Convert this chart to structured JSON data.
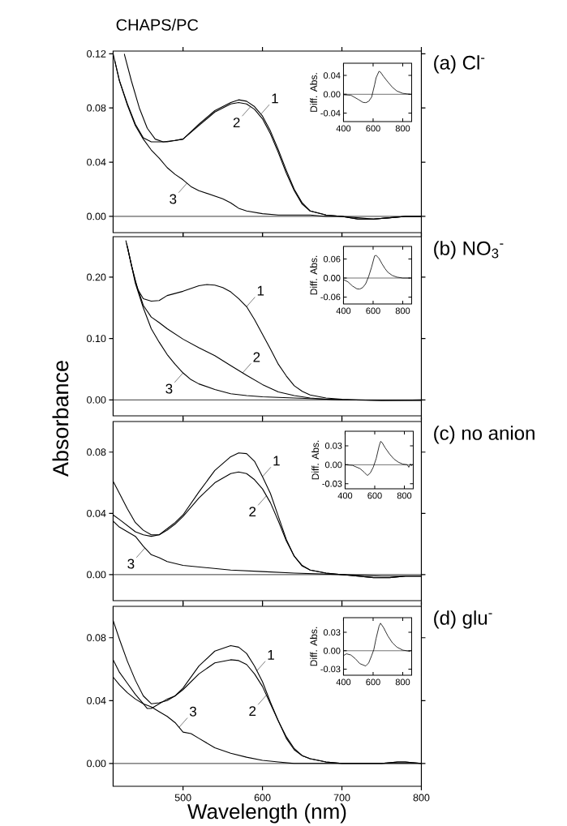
{
  "chart_data": [
    {
      "type": "line",
      "title": "CHAPS/PC",
      "xlim": [
        412,
        800
      ],
      "ylim": [
        -0.012,
        0.122
      ],
      "xticks": [
        500,
        600,
        700,
        800
      ],
      "yticks": [
        {
          "value": 0,
          "label": "0.00"
        },
        {
          "value": 0.04,
          "label": "0.04"
        },
        {
          "value": 0.08,
          "label": "0.08"
        },
        {
          "value": 0.12,
          "label": "0.12"
        }
      ],
      "tick_labels": "y",
      "ref_lines": [
        {
          "axis": "y",
          "value": 0
        }
      ],
      "annotations": [
        "(a) Cl$^{-}$",
        {
          "text": "1",
          "x": 598,
          "y": 0.0754
        },
        {
          "text": "2",
          "x": 585,
          "y": 0.081
        },
        {
          "text": "3",
          "x": 505,
          "y": 0.0245
        }
      ],
      "series": [
        {
          "color": "#000000",
          "x": [
            426,
            435,
            445,
            455,
            465,
            475,
            490,
            500,
            520,
            540,
            560,
            570,
            580,
            590,
            600,
            610,
            620,
            630,
            640,
            650,
            660,
            680,
            700,
            720,
            740,
            760,
            780,
            800
          ],
          "values": [
            0.12,
            0.1,
            0.08,
            0.065,
            0.057,
            0.055,
            0.056,
            0.057,
            0.068,
            0.078,
            0.084,
            0.086,
            0.085,
            0.081,
            0.074,
            0.063,
            0.049,
            0.034,
            0.02,
            0.01,
            0.004,
            0.001,
            0,
            -0.002,
            -0.002,
            -0.001,
            0,
            0
          ]
        },
        {
          "color": "#000000",
          "x": [
            412,
            420,
            430,
            440,
            450,
            460,
            480,
            500,
            520,
            540,
            560,
            570,
            580,
            590,
            600,
            610,
            620,
            630,
            640,
            650,
            660,
            680,
            700,
            720,
            740,
            760,
            780,
            800
          ],
          "values": [
            0.12,
            0.1,
            0.083,
            0.068,
            0.058,
            0.055,
            0.055,
            0.057,
            0.067,
            0.077,
            0.083,
            0.084,
            0.083,
            0.079,
            0.072,
            0.061,
            0.047,
            0.032,
            0.019,
            0.009,
            0.004,
            0.001,
            0,
            -0.002,
            -0.002,
            -0.001,
            0,
            0
          ]
        },
        {
          "color": "#000000",
          "x": [
            414,
            420,
            430,
            440,
            450,
            460,
            470,
            480,
            490,
            500,
            510,
            520,
            530,
            540,
            550,
            560,
            570,
            580,
            600,
            620,
            640,
            660,
            680,
            700,
            720,
            740,
            760,
            780,
            800
          ],
          "values": [
            0.115,
            0.1,
            0.082,
            0.067,
            0.057,
            0.049,
            0.043,
            0.036,
            0.031,
            0.027,
            0.022,
            0.019,
            0.017,
            0.015,
            0.013,
            0.01,
            0.006,
            0.004,
            0.002,
            0.001,
            0.001,
            0.001,
            0,
            0,
            -0.001,
            -0.002,
            -0.001,
            0,
            0
          ]
        }
      ]
    },
    {
      "type": "line",
      "ylabel": "Diff. Abs.",
      "xlim": [
        400,
        860
      ],
      "ylim": [
        -0.058,
        0.066
      ],
      "xticks": [
        400,
        600,
        800
      ],
      "yticks": [
        {
          "value": -0.04,
          "label": "-0.04"
        },
        {
          "value": 0,
          "label": "0.00"
        },
        {
          "value": 0.04,
          "label": "0.04"
        }
      ],
      "ref_lines": [
        {
          "axis": "y",
          "value": 0
        }
      ],
      "series": [
        {
          "color": "#000000",
          "x": [
            400,
            450,
            500,
            530,
            550,
            570,
            590,
            600,
            610,
            620,
            640,
            650,
            670,
            700,
            730,
            760,
            800,
            850
          ],
          "values": [
            -0.001,
            -0.002,
            -0.011,
            -0.017,
            -0.018,
            -0.015,
            -0.006,
            0.007,
            0.02,
            0.035,
            0.049,
            0.047,
            0.038,
            0.026,
            0.015,
            0.007,
            0.002,
            0
          ]
        }
      ]
    },
    {
      "type": "line",
      "ylabel": "Absorbance",
      "xlim": [
        412,
        800
      ],
      "ylim": [
        -0.026,
        0.266
      ],
      "xticks": [
        500,
        600,
        700,
        800
      ],
      "yticks": [
        {
          "value": 0,
          "label": "0.00"
        },
        {
          "value": 0.1,
          "label": "0.10"
        },
        {
          "value": 0.2,
          "label": "0.20"
        }
      ],
      "tick_labels": "y",
      "ref_lines": [
        {
          "axis": "y",
          "value": 0
        }
      ],
      "annotations": [
        "(b) NO$_{3}$$^{-}$",
        {
          "text": "1",
          "x": 580,
          "y": 0.152
        },
        {
          "text": "2",
          "x": 575,
          "y": 0.044
        },
        {
          "text": "3",
          "x": 500,
          "y": 0.044
        }
      ],
      "series": [
        {
          "color": "#000000",
          "x": [
            428,
            435,
            443,
            450,
            460,
            470,
            480,
            500,
            520,
            530,
            540,
            550,
            560,
            570,
            580,
            590,
            600,
            610,
            620,
            630,
            640,
            650,
            660,
            680,
            700,
            720,
            750,
            800
          ],
          "values": [
            0.26,
            0.22,
            0.18,
            0.165,
            0.161,
            0.162,
            0.17,
            0.177,
            0.186,
            0.188,
            0.187,
            0.183,
            0.176,
            0.165,
            0.152,
            0.131,
            0.107,
            0.083,
            0.058,
            0.039,
            0.023,
            0.014,
            0.008,
            0.003,
            0.001,
            0,
            -0.001,
            -0.001
          ]
        },
        {
          "color": "#000000",
          "x": [
            429,
            435,
            440,
            450,
            460,
            470,
            480,
            500,
            520,
            540,
            560,
            580,
            600,
            620,
            640,
            660,
            680,
            700,
            750,
            800
          ],
          "values": [
            0.255,
            0.22,
            0.193,
            0.154,
            0.135,
            0.126,
            0.116,
            0.099,
            0.085,
            0.072,
            0.056,
            0.04,
            0.025,
            0.013,
            0.007,
            0.003,
            0.001,
            0,
            -0.001,
            -0.001
          ]
        },
        {
          "color": "#000000",
          "x": [
            430,
            435,
            440,
            450,
            460,
            470,
            480,
            490,
            500,
            510,
            520,
            540,
            560,
            580,
            600,
            620,
            640,
            660,
            680,
            700,
            750,
            800
          ],
          "values": [
            0.25,
            0.22,
            0.19,
            0.15,
            0.116,
            0.094,
            0.074,
            0.058,
            0.044,
            0.033,
            0.026,
            0.017,
            0.01,
            0.007,
            0.005,
            0.004,
            0.003,
            0.002,
            0.001,
            0,
            -0.001,
            0
          ]
        }
      ]
    },
    {
      "type": "line",
      "ylabel": "Diff. Abs.",
      "xlim": [
        400,
        860
      ],
      "ylim": [
        -0.082,
        0.1
      ],
      "xticks": [
        400,
        600,
        800
      ],
      "yticks": [
        {
          "value": -0.06,
          "label": "-0.06"
        },
        {
          "value": 0,
          "label": "0.00"
        },
        {
          "value": 0.06,
          "label": "0.06"
        }
      ],
      "ref_lines": [
        {
          "axis": "y",
          "value": 0
        }
      ],
      "series": [
        {
          "color": "#000000",
          "x": [
            400,
            430,
            460,
            490,
            510,
            530,
            550,
            570,
            590,
            610,
            620,
            640,
            660,
            680,
            700,
            730,
            760,
            800,
            850
          ],
          "values": [
            -0.005,
            -0.012,
            -0.025,
            -0.034,
            -0.035,
            -0.03,
            -0.018,
            0.005,
            0.035,
            0.07,
            0.072,
            0.062,
            0.045,
            0.03,
            0.018,
            0.008,
            0.003,
            0,
            0
          ]
        }
      ]
    },
    {
      "type": "line",
      "xlim": [
        412,
        800
      ],
      "ylim": [
        -0.017,
        0.1
      ],
      "xticks": [
        500,
        600,
        700,
        800
      ],
      "yticks": [
        {
          "value": 0,
          "label": "0.00"
        },
        {
          "value": 0.04,
          "label": "0.04"
        },
        {
          "value": 0.08,
          "label": "0.08"
        }
      ],
      "tick_labels": "y",
      "ref_lines": [
        {
          "axis": "y",
          "value": 0
        }
      ],
      "annotations": [
        "(c) no anion",
        {
          "text": "1",
          "x": 600,
          "y": 0.064
        },
        {
          "text": "2",
          "x": 605,
          "y": 0.0515
        },
        {
          "text": "3",
          "x": 452,
          "y": 0.0174
        }
      ],
      "series": [
        {
          "color": "#000000",
          "x": [
            412,
            420,
            430,
            440,
            450,
            460,
            470,
            480,
            490,
            500,
            520,
            540,
            560,
            570,
            580,
            590,
            600,
            610,
            620,
            630,
            640,
            650,
            660,
            680,
            700,
            720,
            740,
            760,
            780,
            800
          ],
          "values": [
            0.061,
            0.053,
            0.043,
            0.034,
            0.029,
            0.026,
            0.026,
            0.03,
            0.034,
            0.039,
            0.054,
            0.068,
            0.077,
            0.0795,
            0.079,
            0.074,
            0.064,
            0.053,
            0.038,
            0.023,
            0.012,
            0.0056,
            0.003,
            0.001,
            0,
            -0.001,
            -0.002,
            -0.002,
            -0.001,
            -0.001
          ]
        },
        {
          "color": "#000000",
          "x": [
            412,
            420,
            430,
            440,
            450,
            460,
            470,
            480,
            490,
            500,
            520,
            540,
            560,
            570,
            580,
            590,
            600,
            610,
            620,
            630,
            640,
            650,
            660,
            680,
            700,
            720,
            740,
            760,
            780,
            800
          ],
          "values": [
            0.039,
            0.036,
            0.032,
            0.028,
            0.026,
            0.025,
            0.026,
            0.029,
            0.033,
            0.038,
            0.05,
            0.06,
            0.066,
            0.067,
            0.066,
            0.062,
            0.056,
            0.047,
            0.035,
            0.022,
            0.012,
            0.006,
            0.003,
            0.001,
            0,
            -0.001,
            -0.002,
            -0.002,
            -0.001,
            -0.001
          ]
        },
        {
          "color": "#000000",
          "x": [
            412,
            420,
            430,
            440,
            450,
            460,
            470,
            480,
            500,
            520,
            540,
            560,
            600,
            640,
            700,
            750,
            800
          ],
          "values": [
            0.035,
            0.031,
            0.028,
            0.025,
            0.0185,
            0.013,
            0.011,
            0.0085,
            0.006,
            0.005,
            0.004,
            0.003,
            0.002,
            0.001,
            0,
            -0.001,
            -0.001
          ]
        }
      ]
    },
    {
      "type": "line",
      "ylabel": "Diff. Abs.",
      "xlim": [
        400,
        860
      ],
      "ylim": [
        -0.038,
        0.053
      ],
      "xticks": [
        400,
        600,
        800
      ],
      "yticks": [
        {
          "value": -0.03,
          "label": "-0.03"
        },
        {
          "value": 0,
          "label": "0.00"
        },
        {
          "value": 0.03,
          "label": "0.03"
        }
      ],
      "ref_lines": [
        {
          "axis": "y",
          "value": 0
        }
      ],
      "series": [
        {
          "color": "#000000",
          "x": [
            400,
            450,
            500,
            530,
            550,
            570,
            590,
            610,
            630,
            640,
            650,
            670,
            700,
            730,
            760,
            790,
            820,
            830,
            840,
            850
          ],
          "values": [
            0,
            -0.001,
            -0.006,
            -0.012,
            -0.017,
            -0.013,
            -0.004,
            0.01,
            0.03,
            0.037,
            0.035,
            0.027,
            0.017,
            0.009,
            0.004,
            0.001,
            0,
            -0.004,
            0.001,
            -0.002
          ]
        }
      ]
    },
    {
      "type": "line",
      "xlabel": "Wavelength (nm)",
      "xlim": [
        412,
        800
      ],
      "ylim": [
        -0.0145,
        0.1
      ],
      "xticks": [
        500,
        600,
        700,
        800
      ],
      "yticks": [
        {
          "value": 0,
          "label": "0.00"
        },
        {
          "value": 0.04,
          "label": "0.04"
        },
        {
          "value": 0.08,
          "label": "0.08"
        }
      ],
      "ref_lines": [
        {
          "axis": "y",
          "value": 0
        }
      ],
      "annotations": [
        "(d) glu$^{-}$",
        {
          "text": "1",
          "x": 593,
          "y": 0.059
        },
        {
          "text": "2",
          "x": 605,
          "y": 0.0435
        },
        {
          "text": "3",
          "x": 495,
          "y": 0.023
        }
      ],
      "series": [
        {
          "color": "#000000",
          "x": [
            412,
            420,
            430,
            440,
            450,
            460,
            470,
            480,
            490,
            500,
            520,
            540,
            560,
            570,
            580,
            590,
            600,
            610,
            620,
            630,
            640,
            650,
            660,
            680,
            700,
            750,
            770,
            780,
            800
          ],
          "values": [
            0.091,
            0.079,
            0.065,
            0.053,
            0.043,
            0.038,
            0.0386,
            0.04,
            0.043,
            0.048,
            0.062,
            0.0715,
            0.075,
            0.074,
            0.07,
            0.062,
            0.052,
            0.039,
            0.027,
            0.016,
            0.0087,
            0.005,
            0.003,
            0.001,
            0,
            0,
            0.001,
            0.001,
            0
          ]
        },
        {
          "color": "#000000",
          "x": [
            412,
            420,
            430,
            440,
            450,
            455,
            460,
            470,
            480,
            490,
            500,
            520,
            540,
            560,
            570,
            580,
            590,
            600,
            610,
            620,
            630,
            640,
            650,
            660,
            680,
            700,
            750,
            770,
            780,
            800
          ],
          "values": [
            0.066,
            0.058,
            0.051,
            0.044,
            0.038,
            0.035,
            0.035,
            0.038,
            0.041,
            0.043,
            0.047,
            0.057,
            0.064,
            0.066,
            0.0655,
            0.063,
            0.057,
            0.049,
            0.038,
            0.027,
            0.017,
            0.0095,
            0.005,
            0.003,
            0.001,
            0,
            0,
            0.001,
            0.001,
            0
          ]
        },
        {
          "color": "#000000",
          "x": [
            412,
            420,
            430,
            440,
            450,
            460,
            470,
            480,
            490,
            500,
            510,
            520,
            540,
            560,
            580,
            600,
            620,
            640,
            700,
            800
          ],
          "values": [
            0.055,
            0.05,
            0.045,
            0.041,
            0.038,
            0.036,
            0.033,
            0.03,
            0.026,
            0.02,
            0.019,
            0.016,
            0.01,
            0.0065,
            0.004,
            0.002,
            0.001,
            0,
            0,
            0
          ]
        }
      ]
    },
    {
      "type": "line",
      "ylabel": "Diff. Abs.",
      "xlim": [
        400,
        860
      ],
      "ylim": [
        -0.04,
        0.054
      ],
      "xticks": [
        400,
        600,
        800
      ],
      "yticks": [
        {
          "value": -0.03,
          "label": "-0.03"
        },
        {
          "value": 0,
          "label": "0.00"
        },
        {
          "value": 0.03,
          "label": "0.03"
        }
      ],
      "ref_lines": [
        {
          "axis": "y",
          "value": 0
        }
      ],
      "series": [
        {
          "color": "#000000",
          "x": [
            400,
            420,
            450,
            480,
            510,
            540,
            550,
            570,
            590,
            605,
            620,
            640,
            650,
            670,
            700,
            730,
            760,
            800,
            850
          ],
          "values": [
            -0.008,
            -0.005,
            -0.007,
            -0.013,
            -0.021,
            -0.024,
            -0.025,
            -0.02,
            -0.008,
            0.002,
            0.02,
            0.04,
            0.045,
            0.038,
            0.024,
            0.013,
            0.006,
            0.001,
            -0.001
          ]
        }
      ]
    }
  ]
}
